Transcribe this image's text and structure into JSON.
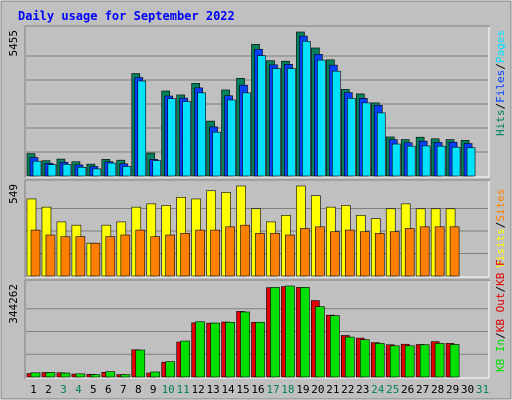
{
  "title": "Daily usage for September 2022",
  "colors": {
    "background": "#C0C0C0",
    "title": "#0000FF",
    "hits": "#00805C",
    "files": "#0040FF",
    "pages": "#00E0FF",
    "visits": "#FFFF00",
    "sites": "#FF8000",
    "kb_in": "#00E000",
    "kb_out": "#E00000",
    "weekend_label": "#00805C",
    "weekday_label": "#000000"
  },
  "legend": {
    "top": [
      {
        "text": "Hits",
        "color_key": "hits"
      },
      {
        "text": "/",
        "color_key": "weekday_label"
      },
      {
        "text": "Files",
        "color_key": "files"
      },
      {
        "text": "/",
        "color_key": "weekday_label"
      },
      {
        "text": "Pages",
        "color_key": "pages"
      }
    ],
    "middle": [
      {
        "text": "Visits",
        "color_key": "visits"
      },
      {
        "text": "/",
        "color_key": "weekday_label"
      },
      {
        "text": "Sites",
        "color_key": "sites"
      }
    ],
    "bottom": [
      {
        "text": "KB In",
        "color_key": "kb_in"
      },
      {
        "text": "/",
        "color_key": "weekday_label"
      },
      {
        "text": "KB Out",
        "color_key": "kb_out"
      },
      {
        "text": "/",
        "color_key": "weekday_label"
      },
      {
        "text": "KB F",
        "color_key": "kb_out"
      }
    ]
  },
  "chart_data": {
    "type": "bar",
    "categories": [
      "1",
      "2",
      "3",
      "4",
      "5",
      "6",
      "7",
      "8",
      "9",
      "10",
      "11",
      "12",
      "13",
      "14",
      "15",
      "16",
      "17",
      "18",
      "19",
      "20",
      "21",
      "22",
      "23",
      "24",
      "25",
      "26",
      "27",
      "28",
      "29",
      "30",
      "31"
    ],
    "weekend_days": [
      "3",
      "4",
      "10",
      "11",
      "17",
      "18",
      "24",
      "25",
      "31"
    ],
    "panels": [
      {
        "id": "requests",
        "ymax_label": "5455",
        "ymax": 5455,
        "series": [
          {
            "name": "Hits",
            "values": [
              850,
              580,
              640,
              540,
              450,
              630,
              600,
              3880,
              870,
              3220,
              3070,
              3510,
              2080,
              3260,
              3700,
              4990,
              4370,
              4350,
              5455,
              4850,
              4400,
              3280,
              3110,
              2770,
              1480,
              1380,
              1470,
              1410,
              1380,
              1350,
              null
            ]
          },
          {
            "name": "Files",
            "values": [
              700,
              480,
              520,
              420,
              360,
              540,
              460,
              3730,
              630,
              3030,
              2950,
              3340,
              1860,
              3040,
              3440,
              4800,
              4210,
              4230,
              5300,
              4610,
              4200,
              3160,
              2940,
              2680,
              1380,
              1260,
              1320,
              1270,
              1280,
              1230,
              null
            ]
          },
          {
            "name": "Pages",
            "values": [
              560,
              430,
              440,
              330,
              270,
              490,
              360,
              3600,
              580,
              2930,
              2820,
              3150,
              1660,
              2880,
              3150,
              4560,
              4070,
              4070,
              5100,
              4390,
              3970,
              2940,
              2770,
              2390,
              1210,
              1130,
              1140,
              1130,
              1090,
              1070,
              null
            ]
          }
        ]
      },
      {
        "id": "visitors",
        "ymax_label": "549",
        "ymax": 549,
        "series": [
          {
            "name": "Visits",
            "values": [
              470,
              420,
              330,
              310,
              200,
              310,
              330,
              420,
              440,
              430,
              480,
              470,
              520,
              510,
              549,
              410,
              330,
              370,
              549,
              490,
              420,
              430,
              370,
              350,
              410,
              440,
              410,
              410,
              410,
              null,
              null
            ]
          },
          {
            "name": "Sites",
            "values": [
              280,
              250,
              240,
              240,
              200,
              240,
              250,
              280,
              240,
              250,
              260,
              280,
              280,
              300,
              310,
              260,
              260,
              250,
              290,
              300,
              270,
              280,
              270,
              260,
              270,
              290,
              300,
              300,
              300,
              null,
              null
            ]
          }
        ]
      },
      {
        "id": "volume",
        "ymax_label": "344262",
        "ymax": 344262,
        "series": [
          {
            "name": "KB In",
            "values": [
              16000,
              17000,
              15000,
              12000,
              9000,
              20000,
              9000,
              102000,
              19000,
              58000,
              136000,
              209000,
              204000,
              207000,
              246000,
              207000,
              339000,
              344262,
              339000,
              266000,
              232000,
              151000,
              141000,
              127000,
              118000,
              118000,
              122000,
              127000,
              123000,
              null,
              null
            ]
          },
          {
            "name": "KB Out",
            "values": [
              13000,
              17000,
              16000,
              11000,
              10000,
              18000,
              9000,
              103000,
              15000,
              56000,
              132000,
              205000,
              204000,
              208000,
              248000,
              207000,
              338000,
              342000,
              339000,
              289000,
              234000,
              157000,
              147000,
              130000,
              122000,
              124000,
              123000,
              134000,
              127000,
              null,
              null
            ]
          }
        ]
      }
    ],
    "grid": true
  }
}
